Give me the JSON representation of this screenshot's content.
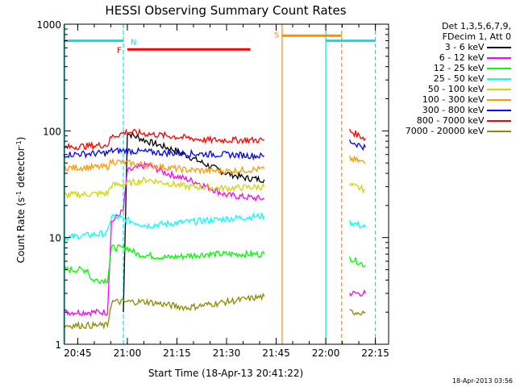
{
  "chart_data": {
    "type": "line",
    "title": "HESSI Observing Summary Count Rates",
    "xlabel": "Start Time (18-Apr-13 20:41:22)",
    "ylabel": "Count Rate (s⁻¹ detector⁻¹)",
    "ylabel_main": "Count Rate (s",
    "ylabel_sup1": "-1",
    "ylabel_mid": " detector",
    "ylabel_sup2": "-1",
    "ylabel_end": ")",
    "yscale": "log",
    "ylim": [
      1,
      1000
    ],
    "xlim_minutes": [
      20.6833,
      22.3167
    ],
    "x_ticks": [
      "20:45",
      "21:00",
      "21:15",
      "21:30",
      "21:45",
      "22:00",
      "22:15"
    ],
    "y_ticks": [
      "1",
      "10",
      "100",
      "1000"
    ],
    "legend_header": [
      "Det 1,3,5,6,7,9,",
      "FDecim 1, Att 0"
    ],
    "series": [
      {
        "name": "3 - 6 keV",
        "color": "#000000",
        "segments": [
          [
            [
              20.98,
              2
            ],
            [
              21.0,
              95
            ],
            [
              21.1,
              80
            ],
            [
              21.25,
              65
            ],
            [
              21.4,
              48
            ],
            [
              21.5,
              40
            ],
            [
              21.6,
              36
            ],
            [
              21.69,
              35
            ]
          ]
        ]
      },
      {
        "name": "6 - 12 keV",
        "color": "#ff00ff",
        "segments": [
          [
            [
              20.68,
              2
            ],
            [
              20.9,
              2
            ],
            [
              20.92,
              14
            ],
            [
              20.98,
              18
            ],
            [
              21.0,
              42
            ],
            [
              21.1,
              48
            ],
            [
              21.2,
              40
            ],
            [
              21.35,
              33
            ],
            [
              21.5,
              25
            ],
            [
              21.69,
              23
            ]
          ],
          [
            [
              22.12,
              3
            ],
            [
              22.2,
              3
            ]
          ]
        ]
      },
      {
        "name": "12 - 25 keV",
        "color": "#00ff00",
        "segments": [
          [
            [
              20.68,
              5
            ],
            [
              20.8,
              5
            ],
            [
              20.82,
              4
            ],
            [
              20.9,
              4
            ],
            [
              20.92,
              8
            ],
            [
              21.0,
              8
            ],
            [
              21.05,
              7
            ],
            [
              21.2,
              6.5
            ],
            [
              21.4,
              7
            ],
            [
              21.69,
              7
            ]
          ],
          [
            [
              22.12,
              6.5
            ],
            [
              22.2,
              5.5
            ]
          ]
        ]
      },
      {
        "name": "25 - 50 keV",
        "color": "#00ffff",
        "segments": [
          [
            [
              20.68,
              10
            ],
            [
              20.9,
              11
            ],
            [
              20.92,
              16
            ],
            [
              21.0,
              14.5
            ],
            [
              21.1,
              13
            ],
            [
              21.3,
              14
            ],
            [
              21.5,
              15
            ],
            [
              21.69,
              16
            ]
          ],
          [
            [
              22.12,
              14
            ],
            [
              22.2,
              12.5
            ]
          ]
        ]
      },
      {
        "name": "50 - 100 keV",
        "color": "#d4d400",
        "segments": [
          [
            [
              20.68,
              25
            ],
            [
              20.9,
              26
            ],
            [
              20.92,
              31
            ],
            [
              21.0,
              32
            ],
            [
              21.1,
              35
            ],
            [
              21.3,
              30
            ],
            [
              21.5,
              29
            ],
            [
              21.69,
              30
            ]
          ],
          [
            [
              22.12,
              31
            ],
            [
              22.2,
              28
            ]
          ]
        ]
      },
      {
        "name": "100 - 300 keV",
        "color": "#ff9a00",
        "segments": [
          [
            [
              20.68,
              45
            ],
            [
              20.9,
              46
            ],
            [
              20.92,
              52
            ],
            [
              21.0,
              50
            ],
            [
              21.1,
              48
            ],
            [
              21.3,
              43
            ],
            [
              21.5,
              42
            ],
            [
              21.69,
              44
            ]
          ],
          [
            [
              22.12,
              55
            ],
            [
              22.2,
              50
            ]
          ]
        ]
      },
      {
        "name": "300 - 800 keV",
        "color": "#0000ff",
        "segments": [
          [
            [
              20.68,
              60
            ],
            [
              20.9,
              62
            ],
            [
              20.92,
              65
            ],
            [
              21.0,
              65
            ],
            [
              21.2,
              62
            ],
            [
              21.5,
              60
            ],
            [
              21.69,
              58
            ]
          ],
          [
            [
              22.12,
              80
            ],
            [
              22.2,
              70
            ]
          ]
        ]
      },
      {
        "name": "800 - 7000 keV",
        "color": "#ff0000",
        "segments": [
          [
            [
              20.68,
              70
            ],
            [
              20.9,
              74
            ],
            [
              20.92,
              88
            ],
            [
              21.0,
              98
            ],
            [
              21.2,
              90
            ],
            [
              21.4,
              82
            ],
            [
              21.69,
              82
            ]
          ],
          [
            [
              22.12,
              100
            ],
            [
              22.2,
              85
            ]
          ]
        ]
      },
      {
        "name": "7000 - 20000 keV",
        "color": "#8c8c00",
        "segments": [
          [
            [
              20.68,
              1.5
            ],
            [
              20.9,
              1.5
            ],
            [
              20.92,
              2.5
            ],
            [
              21.1,
              2.5
            ],
            [
              21.3,
              2.2
            ],
            [
              21.5,
              2.5
            ],
            [
              21.69,
              2.8
            ]
          ],
          [
            [
              22.12,
              2
            ],
            [
              22.2,
              2
            ]
          ]
        ]
      }
    ],
    "annotations": [
      {
        "label": "N",
        "color": "#00e5ee"
      },
      {
        "label": "F",
        "color": "#ff0000"
      },
      {
        "label": "S",
        "color": "#ff8c00"
      }
    ],
    "flag_bars": [
      {
        "color": "#00e5ee",
        "level": 700,
        "x_ranges": [
          [
            20.68,
            20.98
          ],
          [
            22.0,
            22.25
          ]
        ]
      },
      {
        "color": "#ff0000",
        "level": 580,
        "x_ranges": [
          [
            21.0,
            21.62
          ]
        ]
      },
      {
        "color": "#ff8c00",
        "level": 780,
        "x_ranges": [
          [
            21.78,
            22.08
          ]
        ]
      }
    ],
    "vlines": [
      {
        "x": 20.68,
        "color": "#00e5ee",
        "dashed": false
      },
      {
        "x": 20.98,
        "color": "#00e5ee",
        "dashed": true
      },
      {
        "x": 21.78,
        "color": "#ff8c00",
        "dashed": false
      },
      {
        "x": 22.0,
        "color": "#00e5ee",
        "dashed": false
      },
      {
        "x": 22.08,
        "color": "#ff8c00",
        "dashed": true
      },
      {
        "x": 22.25,
        "color": "#00e5ee",
        "dashed": true
      }
    ],
    "grid": false,
    "legend_placement": "right"
  },
  "timestamp": "18-Apr-2013 03:56"
}
